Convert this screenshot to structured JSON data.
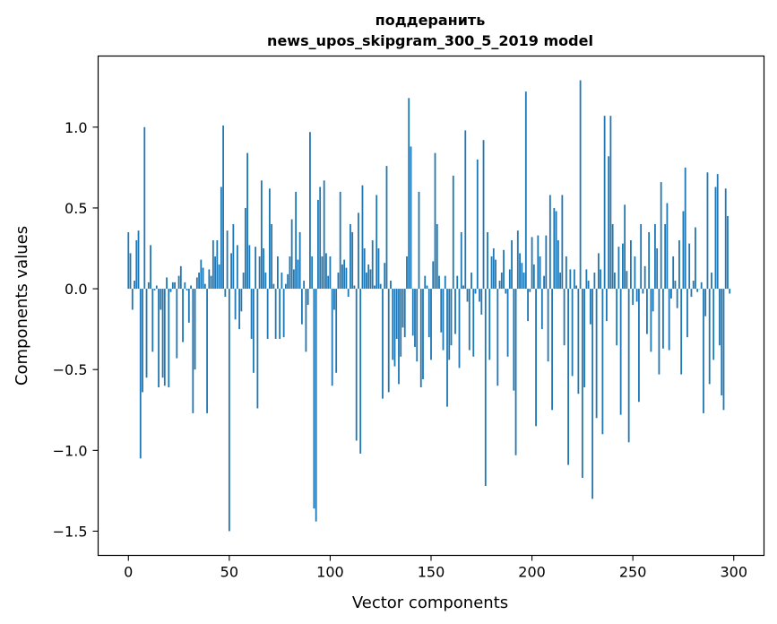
{
  "chart_data": {
    "type": "bar",
    "title_line1": "поддеранить",
    "title_line2": "news_upos_skipgram_300_5_2019 model",
    "xlabel": "Vector components",
    "ylabel": "Components values",
    "xlim": [
      -15,
      315
    ],
    "ylim": [
      -1.65,
      1.44
    ],
    "xticks": [
      0,
      50,
      100,
      150,
      200,
      250,
      300
    ],
    "xtick_labels": [
      "0",
      "50",
      "100",
      "150",
      "200",
      "250",
      "300"
    ],
    "yticks": [
      -1.5,
      -1.0,
      -0.5,
      0.0,
      0.5,
      1.0
    ],
    "ytick_labels": [
      "−1.5",
      "−1.0",
      "−0.5",
      "0.0",
      "0.5",
      "1.0"
    ],
    "bar_color": "#1f77b4",
    "grid": false,
    "values": [
      0.35,
      0.22,
      -0.13,
      0.05,
      0.3,
      0.36,
      -1.05,
      -0.64,
      1.0,
      -0.55,
      0.04,
      0.27,
      -0.39,
      -0.01,
      0.02,
      -0.61,
      -0.13,
      -0.55,
      -0.6,
      0.07,
      -0.61,
      -0.02,
      0.04,
      0.04,
      -0.43,
      0.08,
      0.14,
      -0.33,
      0.04,
      -0.01,
      -0.21,
      0.02,
      -0.77,
      -0.5,
      0.07,
      0.1,
      0.18,
      0.13,
      0.03,
      -0.77,
      0.12,
      0.08,
      0.3,
      0.2,
      0.3,
      0.15,
      0.63,
      1.01,
      -0.05,
      0.36,
      -1.5,
      0.22,
      0.4,
      -0.19,
      0.27,
      -0.25,
      -0.14,
      0.1,
      0.5,
      0.84,
      0.27,
      -0.31,
      -0.52,
      0.26,
      -0.74,
      0.2,
      0.67,
      0.25,
      0.1,
      -0.31,
      0.62,
      0.4,
      0.03,
      -0.31,
      0.2,
      -0.31,
      0.1,
      -0.3,
      0.03,
      0.09,
      0.2,
      0.43,
      0.12,
      0.6,
      0.18,
      0.35,
      -0.22,
      0.05,
      -0.39,
      -0.1,
      0.97,
      0.2,
      -1.36,
      -1.44,
      0.55,
      0.63,
      0.2,
      0.67,
      0.22,
      0.08,
      0.2,
      -0.6,
      -0.13,
      -0.52,
      0.1,
      0.6,
      0.15,
      0.18,
      0.13,
      -0.05,
      0.4,
      0.35,
      0.02,
      -0.94,
      0.47,
      -1.02,
      0.64,
      0.25,
      0.1,
      0.15,
      0.12,
      0.3,
      0.02,
      0.58,
      0.25,
      0.03,
      -0.68,
      0.16,
      0.76,
      -0.64,
      0.05,
      -0.44,
      -0.48,
      -0.31,
      -0.59,
      -0.42,
      -0.24,
      -0.3,
      0.2,
      1.18,
      0.88,
      -0.29,
      -0.36,
      -0.45,
      0.6,
      -0.61,
      -0.56,
      0.08,
      0.02,
      -0.3,
      -0.44,
      0.17,
      0.84,
      0.4,
      0.08,
      -0.27,
      -0.38,
      0.08,
      -0.73,
      -0.44,
      -0.35,
      0.7,
      -0.28,
      0.08,
      -0.49,
      0.35,
      0.02,
      0.98,
      -0.08,
      -0.38,
      0.1,
      -0.42,
      -0.03,
      0.8,
      -0.08,
      -0.16,
      0.92,
      -1.22,
      0.35,
      -0.44,
      0.2,
      0.25,
      0.18,
      -0.6,
      0.05,
      0.1,
      0.24,
      -0.03,
      -0.42,
      0.12,
      0.3,
      -0.63,
      -1.03,
      0.36,
      0.22,
      0.16,
      0.1,
      1.22,
      -0.2,
      -0.02,
      0.32,
      0.15,
      -0.85,
      0.33,
      0.2,
      -0.25,
      0.08,
      0.33,
      -0.45,
      0.58,
      -0.75,
      0.5,
      0.48,
      0.3,
      0.1,
      0.58,
      -0.35,
      0.2,
      -1.09,
      0.12,
      -0.54,
      0.12,
      0.02,
      -0.65,
      1.29,
      -1.17,
      -0.61,
      0.12,
      0.05,
      -0.22,
      -1.3,
      0.1,
      -0.8,
      0.22,
      0.12,
      -0.9,
      1.07,
      -0.2,
      0.82,
      1.07,
      0.4,
      0.1,
      -0.35,
      0.26,
      -0.78,
      0.28,
      0.52,
      0.11,
      -0.95,
      0.3,
      -0.1,
      0.2,
      -0.08,
      -0.7,
      0.4,
      -0.03,
      0.14,
      -0.28,
      0.35,
      -0.39,
      -0.14,
      0.4,
      0.25,
      -0.53,
      0.66,
      -0.37,
      0.4,
      0.53,
      -0.38,
      -0.06,
      0.2,
      0.05,
      -0.12,
      0.3,
      -0.53,
      0.48,
      0.75,
      -0.3,
      0.28,
      -0.05,
      0.05,
      0.38,
      -0.02,
      0.0,
      0.04,
      -0.77,
      -0.17,
      0.72,
      -0.59,
      0.1,
      -0.44,
      0.63,
      0.71,
      -0.35,
      -0.66,
      -0.75,
      0.62,
      0.45,
      -0.03
    ]
  }
}
